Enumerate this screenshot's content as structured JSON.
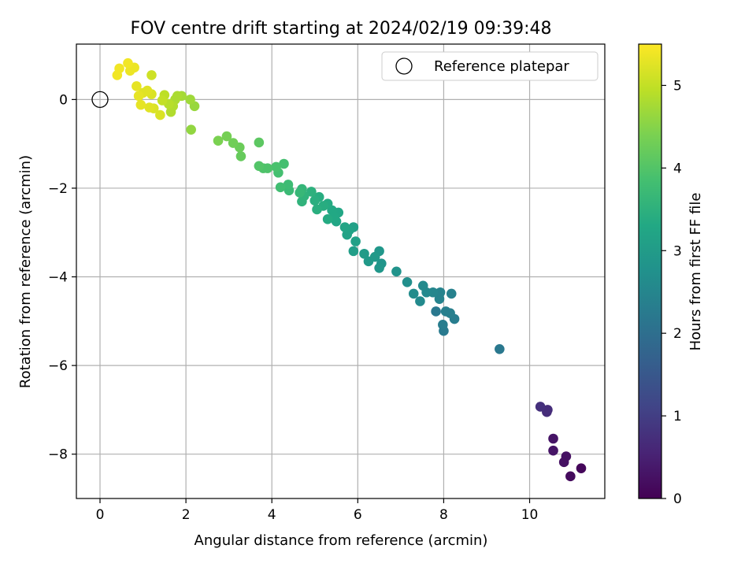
{
  "chart_data": {
    "type": "scatter",
    "title": "FOV centre drift starting at 2024/02/19 09:39:48",
    "xlabel": "Angular distance from reference (arcmin)",
    "ylabel": "Rotation from reference (arcmin)",
    "xlim": [
      -0.55,
      11.75
    ],
    "ylim": [
      -9.0,
      1.25
    ],
    "xticks": [
      0,
      2,
      4,
      6,
      8,
      10
    ],
    "yticks": [
      -8,
      -6,
      -4,
      -2,
      0
    ],
    "grid": true,
    "legend": {
      "position": "top-right",
      "entries": [
        "Reference platepar"
      ]
    },
    "reference_point": {
      "x": 0,
      "y": 0
    },
    "colorbar": {
      "label": "Hours from first FF file",
      "min": 0,
      "max": 5.5,
      "ticks": [
        0,
        1,
        2,
        3,
        4,
        5
      ],
      "colormap": "viridis"
    },
    "points": [
      {
        "x": 0.4,
        "y": 0.55,
        "h": 5.4
      },
      {
        "x": 0.45,
        "y": 0.7,
        "h": 5.4
      },
      {
        "x": 0.65,
        "y": 0.82,
        "h": 5.4
      },
      {
        "x": 0.7,
        "y": 0.65,
        "h": 5.35
      },
      {
        "x": 0.8,
        "y": 0.72,
        "h": 5.35
      },
      {
        "x": 0.85,
        "y": 0.3,
        "h": 5.3
      },
      {
        "x": 0.9,
        "y": 0.08,
        "h": 5.3
      },
      {
        "x": 0.95,
        "y": -0.12,
        "h": 5.3
      },
      {
        "x": 1.0,
        "y": 0.15,
        "h": 5.25
      },
      {
        "x": 1.1,
        "y": 0.2,
        "h": 5.25
      },
      {
        "x": 1.15,
        "y": -0.18,
        "h": 5.25
      },
      {
        "x": 1.2,
        "y": 0.12,
        "h": 5.2
      },
      {
        "x": 1.25,
        "y": -0.2,
        "h": 5.2
      },
      {
        "x": 1.4,
        "y": -0.35,
        "h": 5.2
      },
      {
        "x": 1.2,
        "y": 0.55,
        "h": 5.1
      },
      {
        "x": 1.45,
        "y": -0.02,
        "h": 5.0
      },
      {
        "x": 1.5,
        "y": 0.1,
        "h": 4.95
      },
      {
        "x": 1.6,
        "y": -0.1,
        "h": 4.9
      },
      {
        "x": 1.65,
        "y": -0.28,
        "h": 4.85
      },
      {
        "x": 1.7,
        "y": -0.15,
        "h": 4.85
      },
      {
        "x": 1.75,
        "y": 0.0,
        "h": 4.8
      },
      {
        "x": 1.8,
        "y": 0.08,
        "h": 4.8
      },
      {
        "x": 1.9,
        "y": 0.08,
        "h": 4.75
      },
      {
        "x": 2.1,
        "y": 0.0,
        "h": 4.7
      },
      {
        "x": 2.2,
        "y": -0.15,
        "h": 4.65
      },
      {
        "x": 2.12,
        "y": -0.68,
        "h": 4.6
      },
      {
        "x": 2.75,
        "y": -0.93,
        "h": 4.4
      },
      {
        "x": 2.95,
        "y": -0.83,
        "h": 4.35
      },
      {
        "x": 3.1,
        "y": -0.98,
        "h": 4.3
      },
      {
        "x": 3.25,
        "y": -1.08,
        "h": 4.25
      },
      {
        "x": 3.28,
        "y": -1.28,
        "h": 4.2
      },
      {
        "x": 3.7,
        "y": -0.97,
        "h": 4.1
      },
      {
        "x": 3.7,
        "y": -1.5,
        "h": 4.0
      },
      {
        "x": 3.8,
        "y": -1.55,
        "h": 3.95
      },
      {
        "x": 3.9,
        "y": -1.55,
        "h": 3.95
      },
      {
        "x": 4.1,
        "y": -1.52,
        "h": 3.9
      },
      {
        "x": 4.15,
        "y": -1.65,
        "h": 3.85
      },
      {
        "x": 4.2,
        "y": -1.98,
        "h": 3.8
      },
      {
        "x": 4.28,
        "y": -1.45,
        "h": 3.85
      },
      {
        "x": 4.38,
        "y": -1.92,
        "h": 3.75
      },
      {
        "x": 4.4,
        "y": -2.05,
        "h": 3.7
      },
      {
        "x": 4.65,
        "y": -2.1,
        "h": 3.65
      },
      {
        "x": 4.7,
        "y": -2.02,
        "h": 3.6
      },
      {
        "x": 4.7,
        "y": -2.3,
        "h": 3.55
      },
      {
        "x": 4.75,
        "y": -2.18,
        "h": 3.55
      },
      {
        "x": 4.92,
        "y": -2.08,
        "h": 3.5
      },
      {
        "x": 5.0,
        "y": -2.28,
        "h": 3.45
      },
      {
        "x": 5.05,
        "y": -2.48,
        "h": 3.45
      },
      {
        "x": 5.1,
        "y": -2.2,
        "h": 3.4
      },
      {
        "x": 5.2,
        "y": -2.4,
        "h": 3.4
      },
      {
        "x": 5.3,
        "y": -2.35,
        "h": 3.35
      },
      {
        "x": 5.3,
        "y": -2.7,
        "h": 3.35
      },
      {
        "x": 5.4,
        "y": -2.5,
        "h": 3.3
      },
      {
        "x": 5.45,
        "y": -2.65,
        "h": 3.3
      },
      {
        "x": 5.5,
        "y": -2.75,
        "h": 3.25
      },
      {
        "x": 5.55,
        "y": -2.55,
        "h": 3.25
      },
      {
        "x": 5.7,
        "y": -2.88,
        "h": 3.2
      },
      {
        "x": 5.75,
        "y": -3.05,
        "h": 3.15
      },
      {
        "x": 5.8,
        "y": -2.95,
        "h": 3.15
      },
      {
        "x": 5.9,
        "y": -2.88,
        "h": 3.1
      },
      {
        "x": 5.95,
        "y": -3.2,
        "h": 3.1
      },
      {
        "x": 5.9,
        "y": -3.42,
        "h": 3.05
      },
      {
        "x": 6.15,
        "y": -3.48,
        "h": 3.0
      },
      {
        "x": 6.25,
        "y": -3.65,
        "h": 2.95
      },
      {
        "x": 6.4,
        "y": -3.55,
        "h": 2.95
      },
      {
        "x": 6.5,
        "y": -3.42,
        "h": 2.9
      },
      {
        "x": 6.5,
        "y": -3.8,
        "h": 2.9
      },
      {
        "x": 6.55,
        "y": -3.7,
        "h": 2.85
      },
      {
        "x": 6.9,
        "y": -3.88,
        "h": 2.8
      },
      {
        "x": 7.15,
        "y": -4.12,
        "h": 2.7
      },
      {
        "x": 7.3,
        "y": -4.38,
        "h": 2.65
      },
      {
        "x": 7.45,
        "y": -4.55,
        "h": 2.6
      },
      {
        "x": 7.52,
        "y": -4.2,
        "h": 2.6
      },
      {
        "x": 7.6,
        "y": -4.35,
        "h": 2.55
      },
      {
        "x": 7.75,
        "y": -4.35,
        "h": 2.5
      },
      {
        "x": 7.82,
        "y": -4.78,
        "h": 2.2
      },
      {
        "x": 7.9,
        "y": -4.5,
        "h": 2.45
      },
      {
        "x": 7.92,
        "y": -4.35,
        "h": 2.45
      },
      {
        "x": 7.98,
        "y": -5.08,
        "h": 2.3
      },
      {
        "x": 8.0,
        "y": -5.22,
        "h": 2.25
      },
      {
        "x": 8.05,
        "y": -4.78,
        "h": 2.35
      },
      {
        "x": 8.15,
        "y": -4.82,
        "h": 2.35
      },
      {
        "x": 8.18,
        "y": -4.38,
        "h": 2.4
      },
      {
        "x": 8.25,
        "y": -4.95,
        "h": 2.3
      },
      {
        "x": 9.3,
        "y": -5.63,
        "h": 2.2
      },
      {
        "x": 10.25,
        "y": -6.93,
        "h": 0.75
      },
      {
        "x": 10.4,
        "y": -7.05,
        "h": 0.7
      },
      {
        "x": 10.42,
        "y": -7.0,
        "h": 0.7
      },
      {
        "x": 10.55,
        "y": -7.65,
        "h": 0.3
      },
      {
        "x": 10.55,
        "y": -7.92,
        "h": 0.3
      },
      {
        "x": 10.8,
        "y": -8.18,
        "h": 0.25
      },
      {
        "x": 10.85,
        "y": -8.05,
        "h": 0.25
      },
      {
        "x": 10.95,
        "y": -8.5,
        "h": 0.15
      },
      {
        "x": 11.2,
        "y": -8.32,
        "h": 0.1
      }
    ]
  }
}
